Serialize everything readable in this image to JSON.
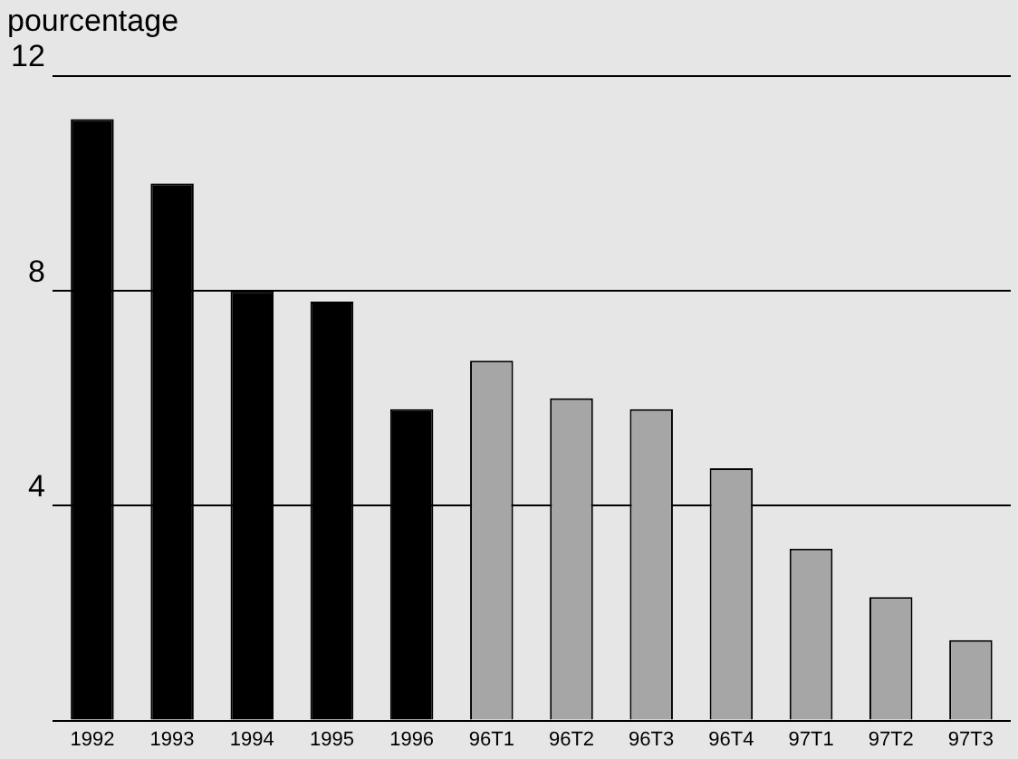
{
  "chart_data": {
    "type": "bar",
    "ylabel": "pourcentage",
    "categories": [
      "1992",
      "1993",
      "1994",
      "1995",
      "1996",
      "96T1",
      "96T2",
      "96T3",
      "96T4",
      "97T1",
      "97T2",
      "97T3"
    ],
    "values": [
      11.2,
      10.0,
      8.0,
      7.8,
      5.8,
      6.7,
      6.0,
      5.8,
      4.7,
      3.2,
      2.3,
      1.5
    ],
    "colors": [
      "#000000",
      "#000000",
      "#000000",
      "#000000",
      "#000000",
      "#a6a6a6",
      "#a6a6a6",
      "#a6a6a6",
      "#a6a6a6",
      "#a6a6a6",
      "#a6a6a6",
      "#a6a6a6"
    ],
    "ylim": [
      0,
      12
    ],
    "yticks": [
      4,
      8,
      12
    ],
    "grid": "y",
    "legend": false
  }
}
